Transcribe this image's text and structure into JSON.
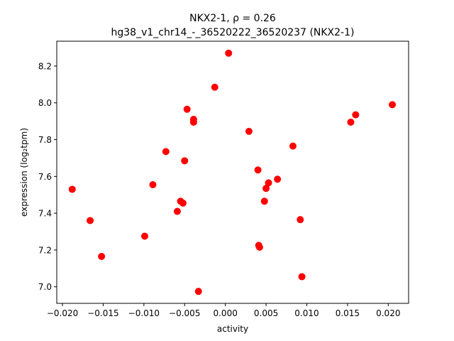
{
  "chart_data": {
    "type": "scatter",
    "title_line1": "NKX2-1, ρ = 0.26",
    "title_line2": "hg38_v1_chr14_-_36520222_36520237 (NKX2-1)",
    "xlabel": "activity",
    "ylabel": "expression (log₂tpm)",
    "xlim": [
      -0.0207,
      0.0225
    ],
    "ylim": [
      6.91,
      8.335
    ],
    "xticks": [
      -0.02,
      -0.015,
      -0.01,
      -0.005,
      0.0,
      0.005,
      0.01,
      0.015,
      0.02
    ],
    "xtick_labels": [
      "−0.020",
      "−0.015",
      "−0.010",
      "−0.005",
      "0.000",
      "0.005",
      "0.010",
      "0.015",
      "0.020"
    ],
    "yticks": [
      7.0,
      7.2,
      7.4,
      7.6,
      7.8,
      8.0,
      8.2
    ],
    "ytick_labels": [
      "7.0",
      "7.2",
      "7.4",
      "7.6",
      "7.8",
      "8.0",
      "8.2"
    ],
    "grid": false,
    "marker_color": "#ff0000",
    "series": [
      {
        "points": [
          {
            "x": -0.0188,
            "y": 7.53
          },
          {
            "x": -0.0166,
            "y": 7.36
          },
          {
            "x": -0.0152,
            "y": 7.165
          },
          {
            "x": -0.0099,
            "y": 7.275
          },
          {
            "x": -0.0089,
            "y": 7.555
          },
          {
            "x": -0.0073,
            "y": 7.735
          },
          {
            "x": -0.0059,
            "y": 7.41
          },
          {
            "x": -0.0055,
            "y": 7.465
          },
          {
            "x": -0.0052,
            "y": 7.455
          },
          {
            "x": -0.005,
            "y": 7.685
          },
          {
            "x": -0.0047,
            "y": 7.965
          },
          {
            "x": -0.0039,
            "y": 7.91
          },
          {
            "x": -0.0039,
            "y": 7.895
          },
          {
            "x": -0.0033,
            "y": 6.975
          },
          {
            "x": -0.0013,
            "y": 8.085
          },
          {
            "x": 0.0004,
            "y": 8.27
          },
          {
            "x": 0.0029,
            "y": 7.845
          },
          {
            "x": 0.004,
            "y": 7.635
          },
          {
            "x": 0.0041,
            "y": 7.225
          },
          {
            "x": 0.0042,
            "y": 7.215
          },
          {
            "x": 0.0048,
            "y": 7.465
          },
          {
            "x": 0.005,
            "y": 7.535
          },
          {
            "x": 0.0053,
            "y": 7.565
          },
          {
            "x": 0.0064,
            "y": 7.585
          },
          {
            "x": 0.0083,
            "y": 7.765
          },
          {
            "x": 0.0092,
            "y": 7.365
          },
          {
            "x": 0.0094,
            "y": 7.055
          },
          {
            "x": 0.0154,
            "y": 7.895
          },
          {
            "x": 0.016,
            "y": 7.935
          },
          {
            "x": 0.0205,
            "y": 7.99
          }
        ]
      }
    ]
  }
}
